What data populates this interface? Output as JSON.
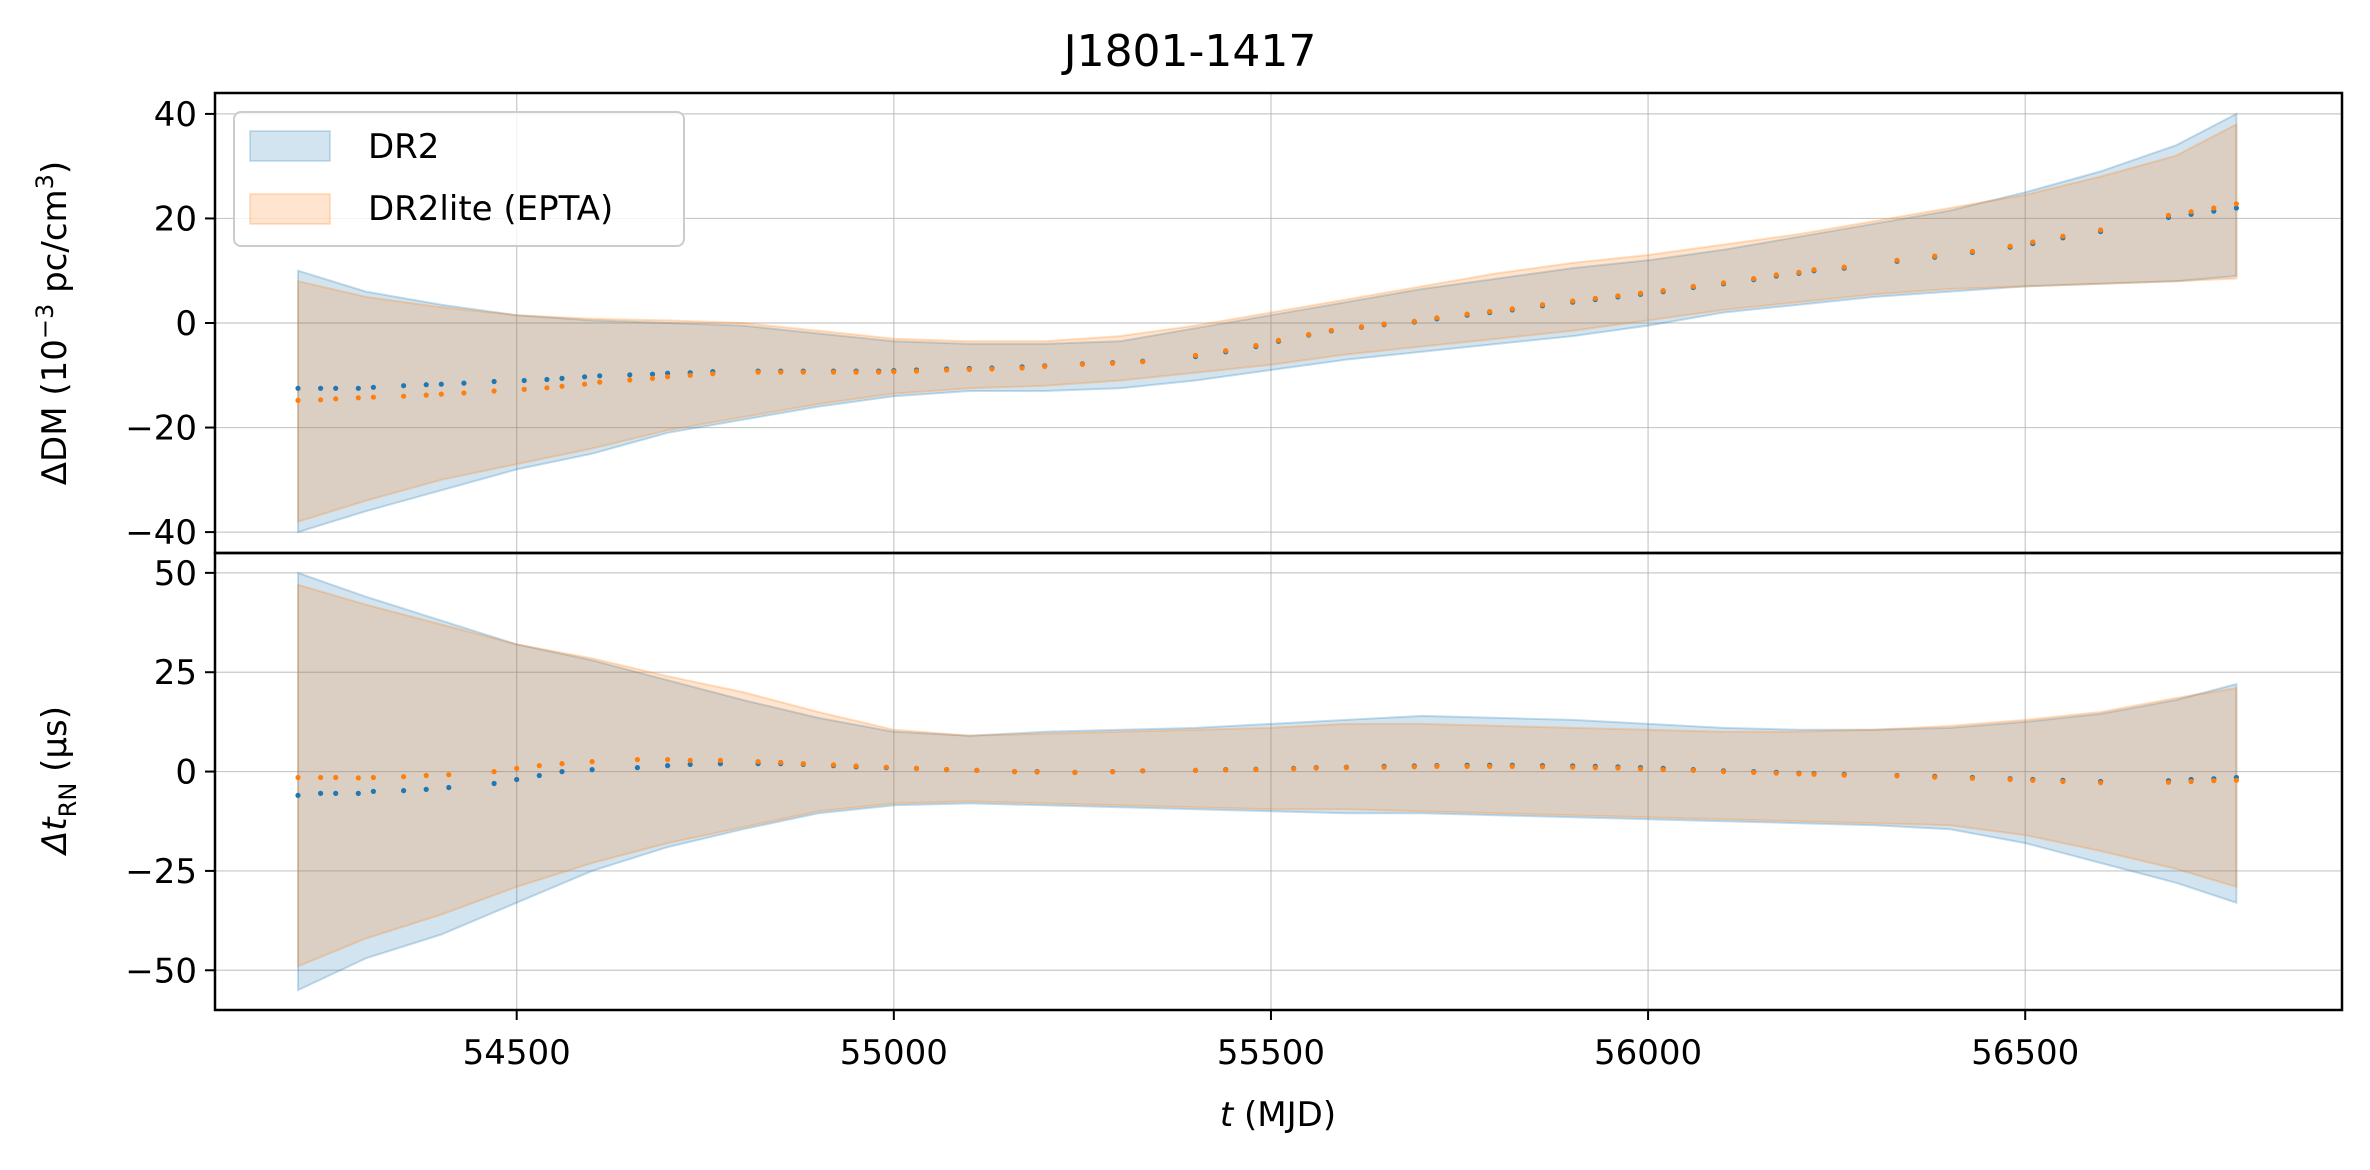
{
  "chart_data": {
    "type": "line",
    "title": "J1801-1417",
    "xlabel_var": "t",
    "xlabel_unit": "(MJD)",
    "xlim": [
      54100,
      56920
    ],
    "xticks": [
      "54500",
      "55000",
      "55500",
      "56000",
      "56500"
    ],
    "grid": true,
    "legend": {
      "placement": "top-left",
      "entries": [
        {
          "label": "DR2",
          "color": "#1f77b4"
        },
        {
          "label": "DR2lite (EPTA)",
          "color": "#ff7f0e"
        }
      ]
    },
    "panels": [
      {
        "name": "dm",
        "ylabel_prefix": "ΔDM (10",
        "ylabel_exp1": "−3",
        "ylabel_mid": " pc/cm",
        "ylabel_exp2": "3",
        "ylabel_suffix": ")",
        "ylim": [
          -44,
          44
        ],
        "yticks": [
          "40",
          "20",
          "0",
          "−20",
          "−40"
        ],
        "ytick_values": [
          40,
          20,
          0,
          -20,
          -40
        ],
        "x_band": [
          54210,
          54300,
          54400,
          54500,
          54600,
          54700,
          54800,
          54900,
          55000,
          55100,
          55200,
          55300,
          55400,
          55500,
          55600,
          55700,
          55800,
          55900,
          56000,
          56100,
          56200,
          56300,
          56400,
          56500,
          56600,
          56700,
          56780
        ],
        "series": [
          {
            "name": "DR2",
            "color": "#1f77b4",
            "band_upper": [
              10,
              6,
              3.5,
              1.5,
              0.5,
              0,
              -0.5,
              -2,
              -3.5,
              -4,
              -4,
              -3.5,
              -1,
              1.5,
              4,
              6.5,
              8.5,
              10.5,
              12,
              14,
              16.5,
              19,
              21.5,
              25,
              29,
              34,
              40
            ],
            "band_lower": [
              -40,
              -36,
              -32,
              -28,
              -25,
              -21,
              -18.5,
              -16,
              -14,
              -13,
              -13,
              -12.5,
              -11,
              -9,
              -7,
              -5.5,
              -4,
              -2.5,
              -0.5,
              2,
              3.5,
              5,
              6,
              7,
              7.5,
              8,
              9
            ],
            "x": [
              54210,
              54240,
              54260,
              54290,
              54310,
              54350,
              54380,
              54400,
              54430,
              54470,
              54510,
              54540,
              54560,
              54590,
              54610,
              54650,
              54680,
              54700,
              54730,
              54760,
              54820,
              54850,
              54880,
              54920,
              54950,
              54980,
              55000,
              55030,
              55070,
              55100,
              55130,
              55170,
              55200,
              55250,
              55290,
              55330,
              55400,
              55440,
              55480,
              55510,
              55550,
              55580,
              55620,
              55650,
              55690,
              55720,
              55760,
              55790,
              55820,
              55860,
              55900,
              55930,
              55960,
              55990,
              56020,
              56060,
              56100,
              56140,
              56170,
              56200,
              56220,
              56260,
              56330,
              56380,
              56430,
              56480,
              56510,
              56550,
              56600,
              56690,
              56720,
              56750,
              56780
            ],
            "y": [
              -12.5,
              -12.5,
              -12.5,
              -12.5,
              -12.3,
              -12,
              -11.8,
              -11.7,
              -11.5,
              -11.2,
              -11,
              -10.8,
              -10.6,
              -10.3,
              -10.1,
              -9.9,
              -9.8,
              -9.6,
              -9.5,
              -9.3,
              -9.2,
              -9.2,
              -9.2,
              -9.2,
              -9.2,
              -9.2,
              -9.1,
              -9,
              -8.8,
              -8.7,
              -8.6,
              -8.4,
              -8.2,
              -7.8,
              -7.6,
              -7.3,
              -6.4,
              -5.5,
              -4.5,
              -3.5,
              -2.3,
              -1.5,
              -0.8,
              -0.3,
              0.2,
              0.8,
              1.5,
              2,
              2.5,
              3.3,
              4,
              4.5,
              5,
              5.5,
              6,
              6.8,
              7.5,
              8.3,
              9,
              9.5,
              10,
              10.5,
              11.8,
              12.6,
              13.5,
              14.5,
              15.2,
              16.3,
              17.5,
              20.2,
              20.8,
              21.4,
              22
            ]
          },
          {
            "name": "DR2lite (EPTA)",
            "color": "#ff7f0e",
            "band_upper": [
              8,
              5,
              3,
              1.5,
              0.8,
              0.5,
              0,
              -1.5,
              -3,
              -3.5,
              -3.5,
              -2.5,
              -0.5,
              2,
              4.5,
              7,
              9.5,
              11.5,
              13,
              15,
              17,
              19.5,
              22,
              24.5,
              28,
              32,
              38
            ],
            "band_lower": [
              -38,
              -34,
              -30,
              -27,
              -24,
              -20.5,
              -18,
              -15.5,
              -13.5,
              -12.5,
              -12,
              -11,
              -9.5,
              -8,
              -6,
              -4.5,
              -3,
              -1.5,
              0.5,
              2.5,
              4,
              5.5,
              6.5,
              7,
              7.5,
              8,
              8.5
            ],
            "x": [
              54210,
              54240,
              54260,
              54290,
              54310,
              54350,
              54380,
              54400,
              54430,
              54470,
              54510,
              54540,
              54560,
              54590,
              54610,
              54650,
              54680,
              54700,
              54730,
              54760,
              54820,
              54850,
              54880,
              54920,
              54950,
              54980,
              55000,
              55030,
              55070,
              55100,
              55130,
              55170,
              55200,
              55250,
              55290,
              55330,
              55400,
              55440,
              55480,
              55510,
              55550,
              55580,
              55620,
              55650,
              55690,
              55720,
              55760,
              55790,
              55820,
              55860,
              55900,
              55930,
              55960,
              55990,
              56020,
              56060,
              56100,
              56140,
              56170,
              56200,
              56220,
              56260,
              56330,
              56380,
              56430,
              56480,
              56510,
              56550,
              56600,
              56690,
              56720,
              56750,
              56780
            ],
            "y": [
              -14.8,
              -14.7,
              -14.5,
              -14.3,
              -14.2,
              -14,
              -13.8,
              -13.6,
              -13.4,
              -13,
              -12.7,
              -12.4,
              -12.1,
              -11.7,
              -11.3,
              -10.9,
              -10.6,
              -10.3,
              -10,
              -9.7,
              -9.4,
              -9.4,
              -9.4,
              -9.4,
              -9.4,
              -9.4,
              -9.3,
              -9.2,
              -9,
              -8.9,
              -8.8,
              -8.6,
              -8.3,
              -7.9,
              -7.7,
              -7.4,
              -6.2,
              -5.3,
              -4.3,
              -3.3,
              -2.2,
              -1.4,
              -0.7,
              -0.2,
              0.3,
              1,
              1.7,
              2.2,
              2.7,
              3.5,
              4.2,
              4.7,
              5.2,
              5.7,
              6.2,
              7,
              7.7,
              8.5,
              9.2,
              9.7,
              10.2,
              10.7,
              12,
              12.8,
              13.7,
              14.7,
              15.5,
              16.6,
              17.8,
              20.6,
              21.3,
              22,
              22.8
            ]
          }
        ]
      },
      {
        "name": "rn",
        "ylabel_prefix": "Δt",
        "ylabel_sub": "RN",
        "ylabel_suffix": " (μs)",
        "ylim": [
          -60,
          55
        ],
        "yticks": [
          "50",
          "25",
          "0",
          "−25",
          "−50"
        ],
        "ytick_values": [
          50,
          25,
          0,
          -25,
          -50
        ],
        "x_band": [
          54210,
          54300,
          54400,
          54500,
          54600,
          54700,
          54800,
          54900,
          55000,
          55100,
          55200,
          55300,
          55400,
          55500,
          55600,
          55700,
          55800,
          55900,
          56000,
          56100,
          56200,
          56300,
          56400,
          56500,
          56600,
          56700,
          56780
        ],
        "series": [
          {
            "name": "DR2",
            "color": "#1f77b4",
            "band_upper": [
              50,
              44,
              38,
              32,
              28,
              23,
              18,
              13.5,
              10,
              9,
              10,
              10.5,
              11,
              12,
              13,
              14,
              13.5,
              13,
              12,
              11,
              10.5,
              10.5,
              11,
              12.5,
              14.5,
              18,
              22
            ],
            "band_lower": [
              -55,
              -47,
              -41,
              -33,
              -25,
              -19,
              -14.5,
              -10.5,
              -8.5,
              -8,
              -8.5,
              -9,
              -9.5,
              -10,
              -10.5,
              -10.5,
              -11,
              -11.5,
              -12,
              -12.5,
              -13,
              -13.5,
              -14.5,
              -18,
              -23,
              -28,
              -33
            ],
            "x": [
              54210,
              54240,
              54260,
              54290,
              54310,
              54350,
              54380,
              54410,
              54470,
              54500,
              54530,
              54560,
              54600,
              54660,
              54700,
              54730,
              54770,
              54820,
              54850,
              54880,
              54920,
              54950,
              54990,
              55030,
              55070,
              55110,
              55160,
              55190,
              55240,
              55290,
              55330,
              55400,
              55440,
              55480,
              55530,
              55560,
              55600,
              55650,
              55690,
              55720,
              55760,
              55790,
              55820,
              55860,
              55900,
              55930,
              55960,
              55990,
              56020,
              56060,
              56100,
              56140,
              56170,
              56200,
              56220,
              56260,
              56330,
              56380,
              56430,
              56480,
              56510,
              56550,
              56600,
              56690,
              56720,
              56750,
              56780
            ],
            "y": [
              -6,
              -5.5,
              -5.5,
              -5.5,
              -5,
              -4.8,
              -4.5,
              -4,
              -3,
              -2,
              -1,
              0,
              0.5,
              1,
              1.5,
              1.8,
              2,
              2,
              2,
              1.8,
              1.5,
              1.2,
              1,
              0.8,
              0.5,
              0.3,
              0,
              0,
              -0.2,
              0,
              0.2,
              0.3,
              0.5,
              0.6,
              0.8,
              1,
              1.1,
              1.3,
              1.4,
              1.5,
              1.6,
              1.6,
              1.6,
              1.5,
              1.4,
              1.3,
              1.2,
              1,
              0.8,
              0.5,
              0.2,
              0,
              -0.2,
              -0.4,
              -0.5,
              -0.7,
              -1,
              -1.2,
              -1.5,
              -1.8,
              -2,
              -2.2,
              -2.5,
              -2.3,
              -2,
              -1.8,
              -1.5
            ]
          },
          {
            "name": "DR2lite (EPTA)",
            "color": "#ff7f0e",
            "band_upper": [
              47,
              42,
              37,
              32,
              28.5,
              24,
              20,
              15,
              10.5,
              9,
              9.5,
              10,
              10.5,
              11,
              12,
              12,
              11.5,
              11,
              10.5,
              10,
              10,
              10.5,
              11.5,
              13,
              15,
              18.5,
              21
            ],
            "band_lower": [
              -49,
              -42,
              -36,
              -29,
              -23,
              -18,
              -14,
              -10,
              -8,
              -7.5,
              -8,
              -8.5,
              -9,
              -9.5,
              -9.5,
              -10,
              -10.5,
              -11,
              -11.5,
              -12,
              -12.5,
              -13,
              -13.5,
              -16,
              -20,
              -24.5,
              -29
            ],
            "x": [
              54210,
              54240,
              54260,
              54290,
              54310,
              54350,
              54380,
              54410,
              54470,
              54500,
              54530,
              54560,
              54600,
              54660,
              54700,
              54730,
              54770,
              54820,
              54850,
              54880,
              54920,
              54950,
              54990,
              55030,
              55070,
              55110,
              55160,
              55190,
              55240,
              55290,
              55330,
              55400,
              55440,
              55480,
              55530,
              55560,
              55600,
              55650,
              55690,
              55720,
              55760,
              55790,
              55820,
              55860,
              55900,
              55930,
              55960,
              55990,
              56020,
              56060,
              56100,
              56140,
              56170,
              56200,
              56220,
              56260,
              56330,
              56380,
              56430,
              56480,
              56510,
              56550,
              56600,
              56690,
              56720,
              56750,
              56780
            ],
            "y": [
              -1.5,
              -1.5,
              -1.5,
              -1.6,
              -1.5,
              -1.3,
              -1,
              -0.8,
              0,
              0.8,
              1.5,
              2,
              2.5,
              3,
              3,
              2.8,
              2.8,
              2.5,
              2.3,
              2,
              1.7,
              1.4,
              1.1,
              0.8,
              0.5,
              0.3,
              0,
              -0.1,
              -0.2,
              0,
              0.2,
              0.3,
              0.4,
              0.5,
              0.7,
              0.9,
              1,
              1.1,
              1.2,
              1.3,
              1.3,
              1.3,
              1.3,
              1.2,
              1.1,
              1,
              0.9,
              0.7,
              0.5,
              0.3,
              0,
              -0.2,
              -0.4,
              -0.6,
              -0.7,
              -0.9,
              -1.1,
              -1.4,
              -1.7,
              -2,
              -2.2,
              -2.5,
              -2.8,
              -2.7,
              -2.5,
              -2.3,
              -2.2
            ]
          }
        ]
      }
    ]
  }
}
